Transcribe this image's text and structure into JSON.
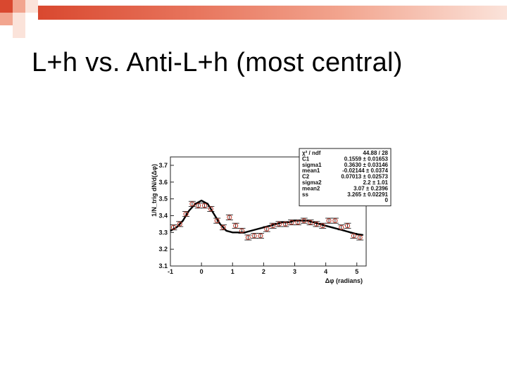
{
  "slide": {
    "title": "L+h vs. Anti-L+h (most central)"
  },
  "colors": {
    "accent": "#d9482f",
    "accent_light": "#f2a58f",
    "accent_pale": "#fbe3da"
  },
  "chart_data": {
    "type": "scatter",
    "title": "",
    "xlabel": "Δφ (radians)",
    "ylabel": "1/N_trig dN/d(Δφ)",
    "xlim": [
      -1,
      5.3
    ],
    "ylim": [
      3.1,
      3.75
    ],
    "x_ticks": [
      "-1",
      "0",
      "1",
      "2",
      "3",
      "4",
      "5"
    ],
    "y_ticks": [
      "3.1",
      "3.2",
      "3.3",
      "3.4",
      "3.5",
      "3.6",
      "3.7"
    ],
    "series": [
      {
        "kind": "points",
        "x": [
          -0.9,
          -0.7,
          -0.5,
          -0.3,
          -0.1,
          0.1,
          0.3,
          0.5,
          0.7,
          0.9,
          1.1,
          1.3,
          1.5,
          1.7,
          1.9,
          2.1,
          2.3,
          2.5,
          2.7,
          2.9,
          3.1,
          3.3,
          3.5,
          3.7,
          3.9,
          4.1,
          4.3,
          4.5,
          4.7,
          4.9,
          5.1
        ],
        "y": [
          3.33,
          3.35,
          3.41,
          3.47,
          3.46,
          3.46,
          3.44,
          3.37,
          3.33,
          3.39,
          3.34,
          3.31,
          3.27,
          3.28,
          3.28,
          3.32,
          3.34,
          3.35,
          3.35,
          3.36,
          3.36,
          3.37,
          3.36,
          3.35,
          3.34,
          3.37,
          3.37,
          3.33,
          3.34,
          3.28,
          3.27
        ],
        "err": [
          0.015,
          0.015,
          0.015,
          0.015,
          0.015,
          0.015,
          0.015,
          0.015,
          0.015,
          0.015,
          0.015,
          0.015,
          0.015,
          0.015,
          0.015,
          0.015,
          0.015,
          0.015,
          0.015,
          0.015,
          0.015,
          0.015,
          0.015,
          0.015,
          0.015,
          0.015,
          0.015,
          0.015,
          0.015,
          0.015,
          0.015
        ]
      },
      {
        "kind": "fit",
        "x": [
          -1.0,
          -0.8,
          -0.6,
          -0.4,
          -0.2,
          0.0,
          0.2,
          0.4,
          0.6,
          0.8,
          1.0,
          1.2,
          1.4,
          1.6,
          1.8,
          2.0,
          2.2,
          2.4,
          2.6,
          2.8,
          3.0,
          3.2,
          3.4,
          3.6,
          3.8,
          4.0,
          4.2,
          4.4,
          4.6,
          4.8,
          5.0,
          5.2
        ],
        "y": [
          3.31,
          3.33,
          3.37,
          3.43,
          3.47,
          3.49,
          3.47,
          3.41,
          3.35,
          3.31,
          3.3,
          3.3,
          3.3,
          3.31,
          3.32,
          3.33,
          3.34,
          3.35,
          3.36,
          3.36,
          3.37,
          3.37,
          3.37,
          3.36,
          3.35,
          3.34,
          3.33,
          3.32,
          3.31,
          3.3,
          3.29,
          3.285
        ]
      }
    ],
    "stats_box": {
      "rows": [
        {
          "name": "χ² / ndf",
          "value": "44.88 / 28"
        },
        {
          "name": "C1",
          "value": "0.1559 ± 0.01653"
        },
        {
          "name": "sigma1",
          "value": "0.3630 ± 0.03146"
        },
        {
          "name": "mean1",
          "value": "-0.02144 ± 0.0374"
        },
        {
          "name": "C2",
          "value": "0.07013 ± 0.02573"
        },
        {
          "name": "sigma2",
          "value": "2.2 ± 1.01"
        },
        {
          "name": "mean2",
          "value": "3.07 ± 0.2396"
        },
        {
          "name": "ss",
          "value": "3.265 ± 0.02291"
        },
        {
          "name": "",
          "value": "0"
        }
      ]
    }
  }
}
